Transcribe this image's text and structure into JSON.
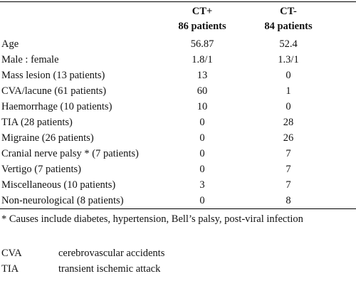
{
  "table": {
    "columns": [
      {
        "line1": "CT+",
        "line2": "86 patients"
      },
      {
        "line1": "CT-",
        "line2": "84 patients"
      }
    ],
    "rows": [
      {
        "label": "Age",
        "ct_pos": "56.87",
        "ct_neg": "52.4"
      },
      {
        "label": "Male : female",
        "ct_pos": "1.8/1",
        "ct_neg": "1.3/1"
      },
      {
        "label": "Mass lesion (13 patients)",
        "ct_pos": "13",
        "ct_neg": "0"
      },
      {
        "label": "CVA/lacune (61 patients)",
        "ct_pos": "60",
        "ct_neg": "1"
      },
      {
        "label": "Haemorrhage (10 patients)",
        "ct_pos": "10",
        "ct_neg": "0"
      },
      {
        "label": "TIA (28 patients)",
        "ct_pos": "0",
        "ct_neg": "28"
      },
      {
        "label": "Migraine (26 patients)",
        "ct_pos": "0",
        "ct_neg": "26"
      },
      {
        "label": "Cranial nerve palsy * (7 patients)",
        "ct_pos": "0",
        "ct_neg": "7"
      },
      {
        "label": "Vertigo (7 patients)",
        "ct_pos": "0",
        "ct_neg": "7"
      },
      {
        "label": "Miscellaneous (10 patients)",
        "ct_pos": "3",
        "ct_neg": "7"
      },
      {
        "label": "Non-neurological (8 patients)",
        "ct_pos": "0",
        "ct_neg": "8"
      }
    ]
  },
  "footnote": "* Causes include diabetes, hypertension, Bell’s palsy, post-viral infection",
  "abbreviations": [
    {
      "abbr": "CVA",
      "meaning": "cerebrovascular accidents"
    },
    {
      "abbr": "TIA",
      "meaning": "transient ischemic attack"
    }
  ]
}
